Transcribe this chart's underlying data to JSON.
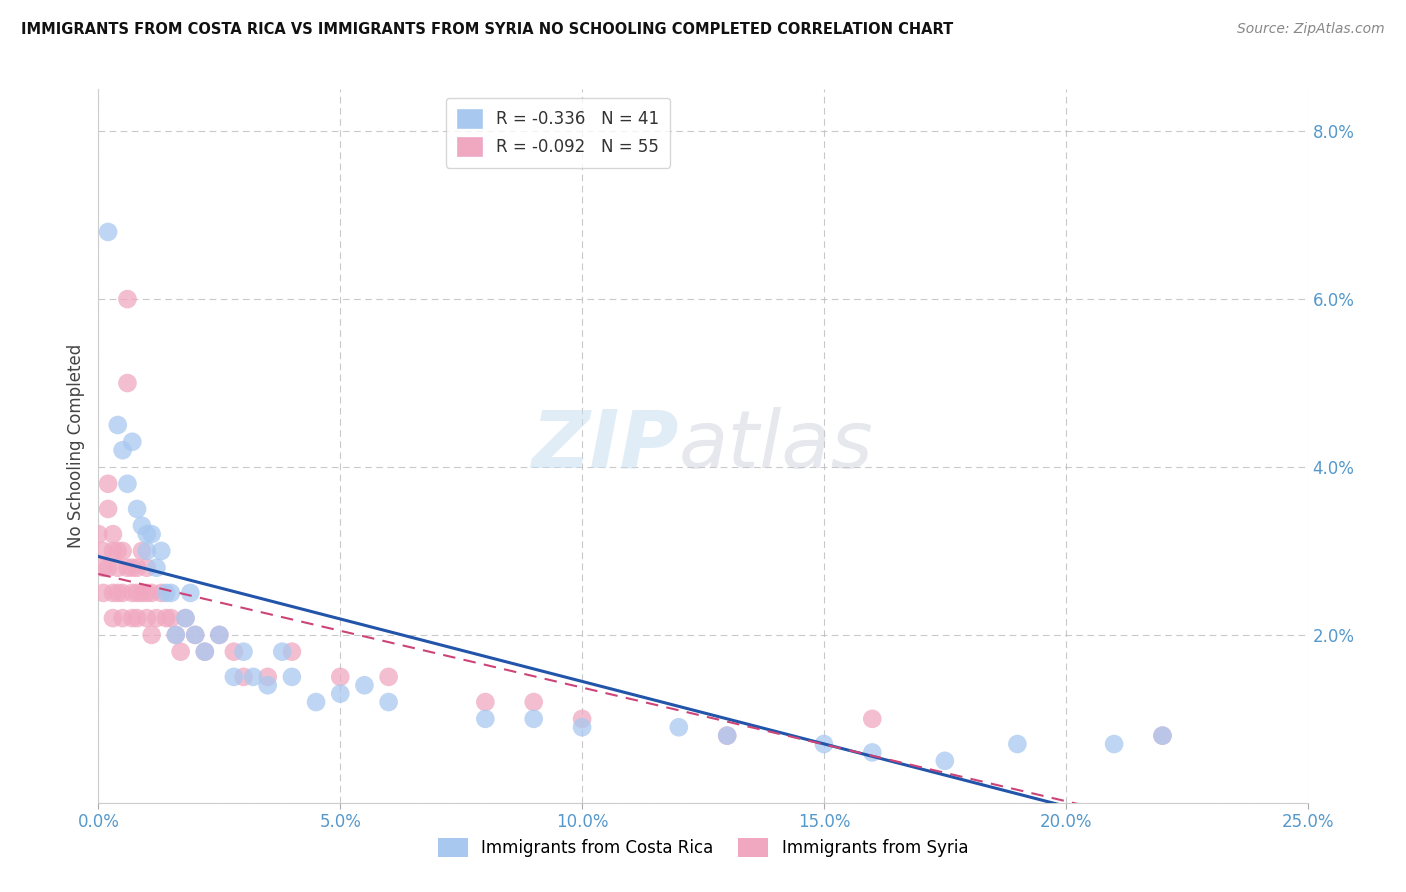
{
  "title": "IMMIGRANTS FROM COSTA RICA VS IMMIGRANTS FROM SYRIA NO SCHOOLING COMPLETED CORRELATION CHART",
  "source": "Source: ZipAtlas.com",
  "ylabel": "No Schooling Completed",
  "legend_labels": [
    "Immigrants from Costa Rica",
    "Immigrants from Syria"
  ],
  "legend_r": [
    "R = ",
    "R = "
  ],
  "legend_r_val": [
    "-0.336",
    "-0.092"
  ],
  "legend_n": [
    "N = ",
    "N = "
  ],
  "legend_n_val": [
    "41",
    "55"
  ],
  "xlim": [
    0.0,
    0.25
  ],
  "ylim": [
    0.0,
    0.085
  ],
  "xticks": [
    0.0,
    0.05,
    0.1,
    0.15,
    0.2,
    0.25
  ],
  "yticks": [
    0.0,
    0.02,
    0.04,
    0.06,
    0.08
  ],
  "xticklabels": [
    "0.0%",
    "5.0%",
    "10.0%",
    "15.0%",
    "20.0%",
    "25.0%"
  ],
  "yticklabels": [
    "",
    "2.0%",
    "4.0%",
    "6.0%",
    "8.0%"
  ],
  "color_cr": "#a8c8f0",
  "color_sy": "#f0a8c0",
  "line_color_cr": "#2255aa",
  "line_color_sy": "#cc4477",
  "background_color": "#ffffff",
  "grid_color": "#bbbbbb",
  "costa_rica_x": [
    0.002,
    0.004,
    0.005,
    0.006,
    0.007,
    0.008,
    0.009,
    0.01,
    0.01,
    0.011,
    0.012,
    0.013,
    0.014,
    0.015,
    0.016,
    0.018,
    0.019,
    0.02,
    0.022,
    0.025,
    0.028,
    0.03,
    0.032,
    0.035,
    0.038,
    0.04,
    0.045,
    0.05,
    0.055,
    0.06,
    0.08,
    0.09,
    0.1,
    0.12,
    0.13,
    0.15,
    0.16,
    0.175,
    0.19,
    0.21,
    0.22
  ],
  "costa_rica_y": [
    0.068,
    0.045,
    0.042,
    0.038,
    0.043,
    0.035,
    0.033,
    0.03,
    0.032,
    0.032,
    0.028,
    0.03,
    0.025,
    0.025,
    0.02,
    0.022,
    0.025,
    0.02,
    0.018,
    0.02,
    0.015,
    0.018,
    0.015,
    0.014,
    0.018,
    0.015,
    0.012,
    0.013,
    0.014,
    0.012,
    0.01,
    0.01,
    0.009,
    0.009,
    0.008,
    0.007,
    0.006,
    0.005,
    0.007,
    0.007,
    0.008
  ],
  "syria_x": [
    0.0,
    0.001,
    0.001,
    0.001,
    0.002,
    0.002,
    0.002,
    0.003,
    0.003,
    0.003,
    0.003,
    0.004,
    0.004,
    0.004,
    0.005,
    0.005,
    0.005,
    0.006,
    0.006,
    0.006,
    0.007,
    0.007,
    0.007,
    0.008,
    0.008,
    0.008,
    0.009,
    0.009,
    0.01,
    0.01,
    0.01,
    0.011,
    0.011,
    0.012,
    0.013,
    0.014,
    0.015,
    0.016,
    0.017,
    0.018,
    0.02,
    0.022,
    0.025,
    0.028,
    0.03,
    0.035,
    0.04,
    0.05,
    0.06,
    0.08,
    0.09,
    0.1,
    0.13,
    0.16,
    0.22
  ],
  "syria_y": [
    0.032,
    0.03,
    0.028,
    0.025,
    0.038,
    0.035,
    0.028,
    0.032,
    0.03,
    0.025,
    0.022,
    0.03,
    0.028,
    0.025,
    0.03,
    0.025,
    0.022,
    0.028,
    0.06,
    0.05,
    0.025,
    0.028,
    0.022,
    0.025,
    0.028,
    0.022,
    0.03,
    0.025,
    0.025,
    0.028,
    0.022,
    0.025,
    0.02,
    0.022,
    0.025,
    0.022,
    0.022,
    0.02,
    0.018,
    0.022,
    0.02,
    0.018,
    0.02,
    0.018,
    0.015,
    0.015,
    0.018,
    0.015,
    0.015,
    0.012,
    0.012,
    0.01,
    0.008,
    0.01,
    0.008
  ]
}
